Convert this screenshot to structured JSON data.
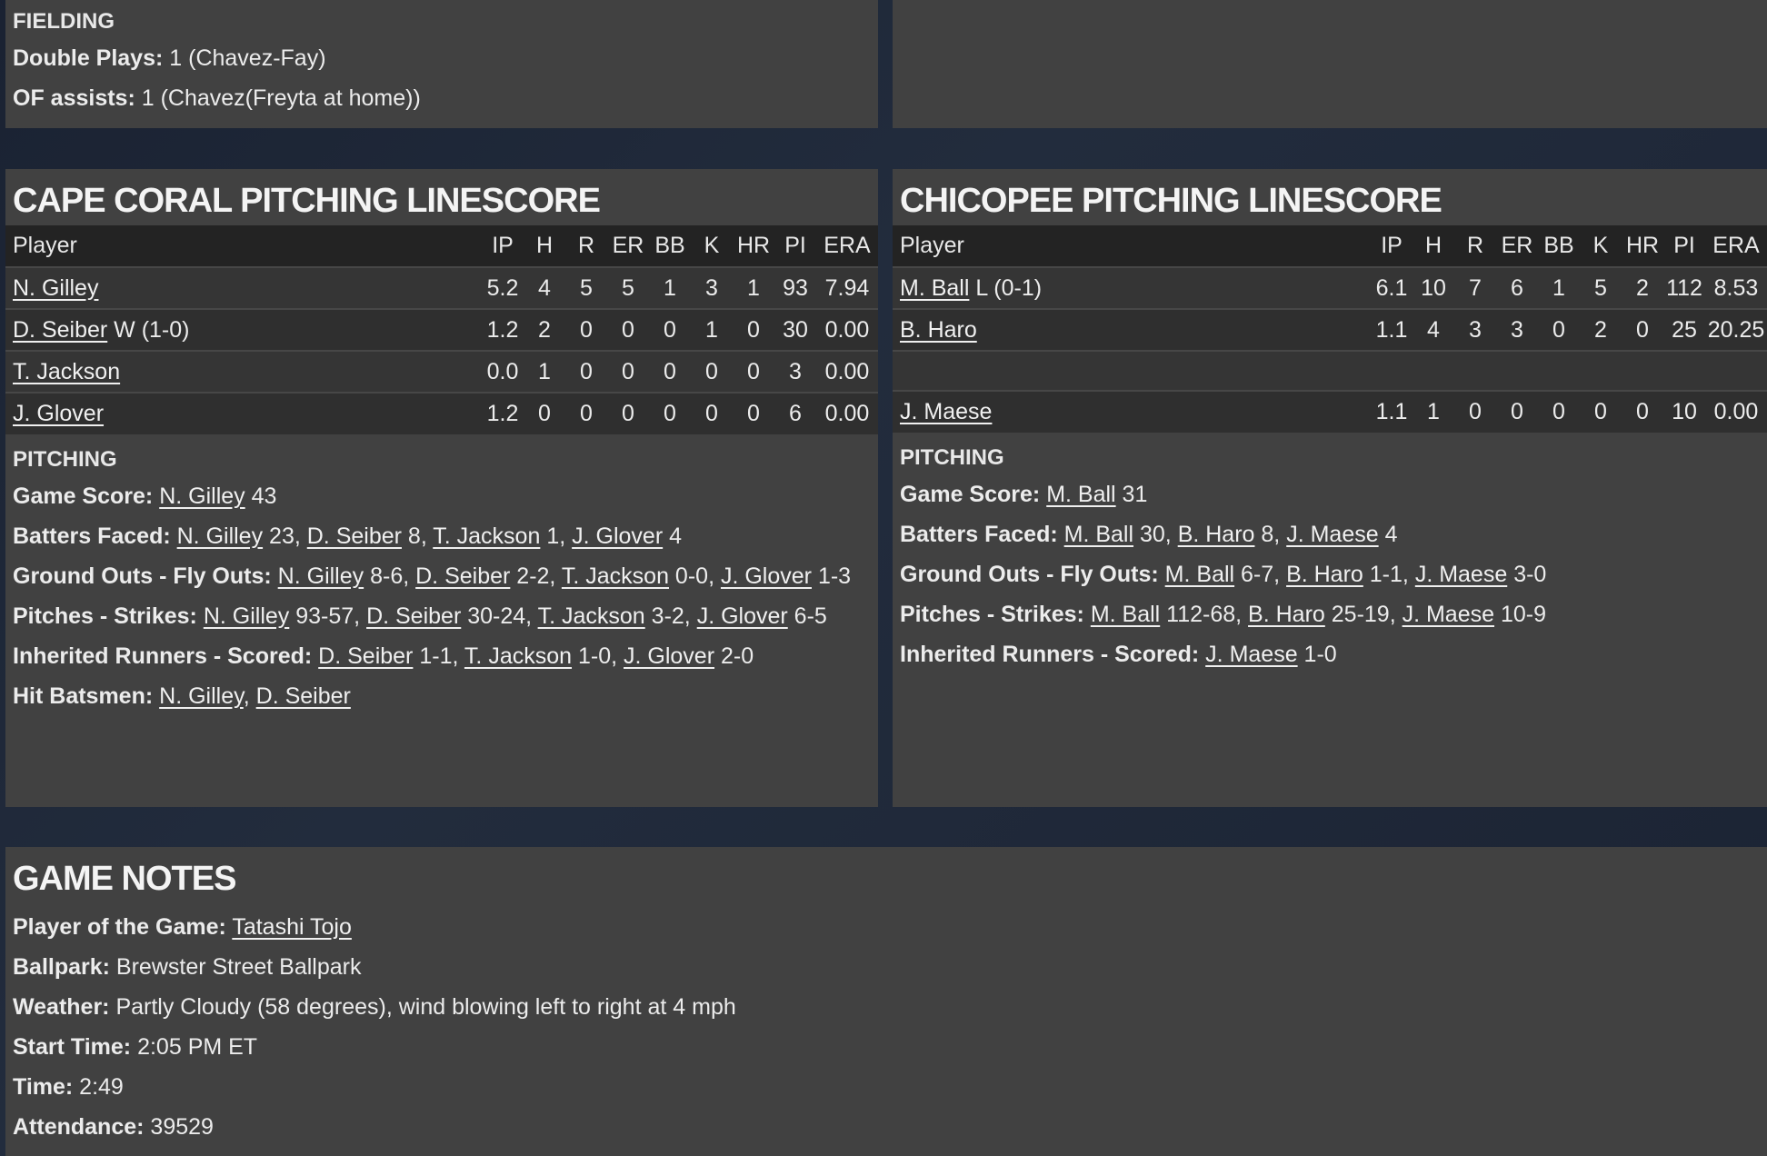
{
  "fielding": {
    "heading": "FIELDING",
    "lines": [
      {
        "label": "Double Plays:",
        "parts": [
          {
            "t": " 1 (Chavez-Fay)"
          }
        ]
      },
      {
        "label": "OF assists:",
        "parts": [
          {
            "t": " 1 (Chavez(Freyta at home))"
          }
        ]
      }
    ]
  },
  "columns": [
    "Player",
    "IP",
    "H",
    "R",
    "ER",
    "BB",
    "K",
    "HR",
    "PI",
    "ERA"
  ],
  "cape_coral": {
    "title": "CAPE CORAL PITCHING LINESCORE",
    "rows": [
      {
        "player": "N. Gilley",
        "note": "",
        "stats": [
          "5.2",
          "4",
          "5",
          "5",
          "1",
          "3",
          "1",
          "93",
          "7.94"
        ]
      },
      {
        "player": "D. Seiber",
        "note": " W (1-0)",
        "stats": [
          "1.2",
          "2",
          "0",
          "0",
          "0",
          "1",
          "0",
          "30",
          "0.00"
        ]
      },
      {
        "player": "T. Jackson",
        "note": "",
        "stats": [
          "0.0",
          "1",
          "0",
          "0",
          "0",
          "0",
          "0",
          "3",
          "0.00"
        ]
      },
      {
        "player": "J. Glover",
        "note": "",
        "stats": [
          "1.2",
          "0",
          "0",
          "0",
          "0",
          "0",
          "0",
          "6",
          "0.00"
        ]
      }
    ],
    "section": "PITCHING",
    "lines": [
      {
        "label": "Game Score:",
        "parts": [
          {
            "t": " "
          },
          {
            "l": "N. Gilley"
          },
          {
            "t": " 43"
          }
        ]
      },
      {
        "label": "Batters Faced:",
        "parts": [
          {
            "t": " "
          },
          {
            "l": "N. Gilley"
          },
          {
            "t": " 23, "
          },
          {
            "l": "D. Seiber"
          },
          {
            "t": " 8, "
          },
          {
            "l": "T. Jackson"
          },
          {
            "t": " 1, "
          },
          {
            "l": "J. Glover"
          },
          {
            "t": " 4"
          }
        ]
      },
      {
        "label": "Ground Outs - Fly Outs:",
        "parts": [
          {
            "t": " "
          },
          {
            "l": "N. Gilley"
          },
          {
            "t": " 8-6, "
          },
          {
            "l": "D. Seiber"
          },
          {
            "t": " 2-2, "
          },
          {
            "l": "T. Jackson"
          },
          {
            "t": " 0-0, "
          },
          {
            "l": "J. Glover"
          },
          {
            "t": " 1-3"
          }
        ]
      },
      {
        "label": "Pitches - Strikes:",
        "parts": [
          {
            "t": " "
          },
          {
            "l": "N. Gilley"
          },
          {
            "t": " 93-57, "
          },
          {
            "l": "D. Seiber"
          },
          {
            "t": " 30-24, "
          },
          {
            "l": "T. Jackson"
          },
          {
            "t": " 3-2, "
          },
          {
            "l": "J. Glover"
          },
          {
            "t": " 6-5"
          }
        ]
      },
      {
        "label": "Inherited Runners - Scored:",
        "parts": [
          {
            "t": " "
          },
          {
            "l": "D. Seiber"
          },
          {
            "t": " 1-1, "
          },
          {
            "l": "T. Jackson"
          },
          {
            "t": " 1-0, "
          },
          {
            "l": "J. Glover"
          },
          {
            "t": " 2-0"
          }
        ]
      },
      {
        "label": "Hit Batsmen:",
        "parts": [
          {
            "t": " "
          },
          {
            "l": "N. Gilley"
          },
          {
            "t": ", "
          },
          {
            "l": "D. Seiber"
          }
        ]
      }
    ]
  },
  "chicopee": {
    "title": "CHICOPEE PITCHING LINESCORE",
    "rows": [
      {
        "player": "M. Ball",
        "note": " L (0-1)",
        "stats": [
          "6.1",
          "10",
          "7",
          "6",
          "1",
          "5",
          "2",
          "112",
          "8.53"
        ]
      },
      {
        "player": "B. Haro",
        "note": "",
        "stats": [
          "1.1",
          "4",
          "3",
          "3",
          "0",
          "2",
          "0",
          "25",
          "20.25"
        ]
      },
      {
        "blank": true
      },
      {
        "player": "J. Maese",
        "note": "",
        "stats": [
          "1.1",
          "1",
          "0",
          "0",
          "0",
          "0",
          "0",
          "10",
          "0.00"
        ]
      }
    ],
    "section": "PITCHING",
    "lines": [
      {
        "label": "Game Score:",
        "parts": [
          {
            "t": " "
          },
          {
            "l": "M. Ball"
          },
          {
            "t": " 31"
          }
        ]
      },
      {
        "label": "Batters Faced:",
        "parts": [
          {
            "t": " "
          },
          {
            "l": "M. Ball"
          },
          {
            "t": " 30, "
          },
          {
            "l": "B. Haro"
          },
          {
            "t": " 8, "
          },
          {
            "l": "J. Maese"
          },
          {
            "t": " 4"
          }
        ]
      },
      {
        "label": "Ground Outs - Fly Outs:",
        "parts": [
          {
            "t": " "
          },
          {
            "l": "M. Ball"
          },
          {
            "t": " 6-7, "
          },
          {
            "l": "B. Haro"
          },
          {
            "t": " 1-1, "
          },
          {
            "l": "J. Maese"
          },
          {
            "t": " 3-0"
          }
        ]
      },
      {
        "label": "Pitches - Strikes:",
        "parts": [
          {
            "t": " "
          },
          {
            "l": "M. Ball"
          },
          {
            "t": " 112-68, "
          },
          {
            "l": "B. Haro"
          },
          {
            "t": " 25-19, "
          },
          {
            "l": "J. Maese"
          },
          {
            "t": " 10-9"
          }
        ]
      },
      {
        "label": "Inherited Runners - Scored:",
        "parts": [
          {
            "t": " "
          },
          {
            "l": "J. Maese"
          },
          {
            "t": " 1-0"
          }
        ]
      }
    ]
  },
  "game_notes": {
    "title": "GAME NOTES",
    "lines": [
      {
        "label": "Player of the Game:",
        "parts": [
          {
            "t": " "
          },
          {
            "l": "Tatashi Tojo"
          }
        ]
      },
      {
        "label": "Ballpark:",
        "parts": [
          {
            "t": " Brewster Street Ballpark"
          }
        ]
      },
      {
        "label": "Weather:",
        "parts": [
          {
            "t": " Partly Cloudy (58 degrees), wind blowing left to right at 4 mph"
          }
        ]
      },
      {
        "label": "Start Time:",
        "parts": [
          {
            "t": " 2:05 PM ET"
          }
        ]
      },
      {
        "label": "Time:",
        "parts": [
          {
            "t": " 2:49"
          }
        ]
      },
      {
        "label": "Attendance:",
        "parts": [
          {
            "t": " 39529"
          }
        ]
      }
    ]
  }
}
